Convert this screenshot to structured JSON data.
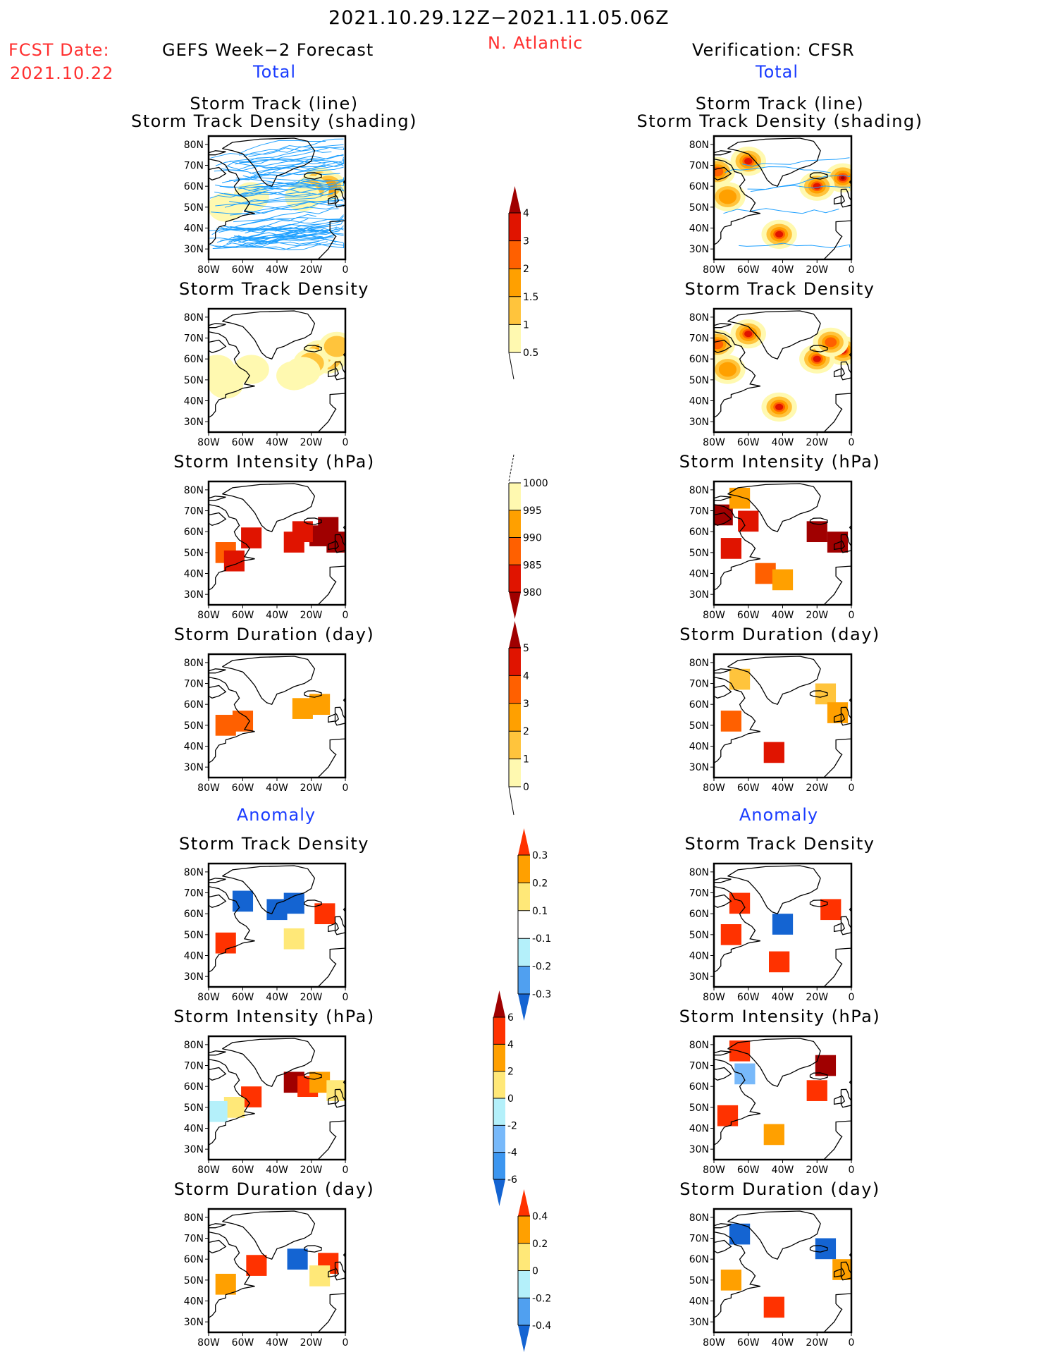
{
  "header": {
    "period": "2021.10.29.12Z−2021.11.05.06Z",
    "region": "N. Atlantic",
    "fcst_label": "FCST Date:",
    "fcst_date": "2021.10.22",
    "left_title": "GEFS Week−2 Forecast",
    "right_title": "Verification: CFSR",
    "total_label_left": "Total",
    "total_label_right": "Total",
    "anomaly_label_left": "Anomaly",
    "anomaly_label_right": "Anomaly"
  },
  "panel_titles": {
    "track_line": "Storm Track (line)",
    "track_shading": "Storm Track Density (shading)",
    "density": "Storm Track Density",
    "intensity": "Storm Intensity (hPa)",
    "duration": "Storm Duration (day)"
  },
  "axes": {
    "lat_ticks": [
      "80N",
      "70N",
      "60N",
      "50N",
      "40N",
      "30N"
    ],
    "lon_ticks": [
      "80W",
      "60W",
      "40W",
      "20W",
      "0"
    ],
    "lat_range": [
      25,
      84
    ],
    "lon_range": [
      -80,
      0
    ]
  },
  "colors": {
    "total_density": [
      "#fff9b0",
      "#ffc43c",
      "#ffa000",
      "#ff6000",
      "#e01400",
      "#a00000"
    ],
    "total_intensity": [
      "#fff9b0",
      "#ffa000",
      "#ff6000",
      "#e01400",
      "#a00000"
    ],
    "total_duration": [
      "#fff9b0",
      "#ffc43c",
      "#ffa000",
      "#ff6000",
      "#e01400",
      "#a00000"
    ],
    "anom": [
      "#1464d2",
      "#50a0f0",
      "#b4f0fa",
      "#ffffff",
      "#ffe878",
      "#ffa000",
      "#ff3200"
    ],
    "anom_int": [
      "#1464d2",
      "#3c96f0",
      "#78b9fa",
      "#b4f0fa",
      "#ffe878",
      "#ffa000",
      "#ff3200",
      "#a00000"
    ],
    "track_line": "#1ea0ff",
    "title_red": "#ff3030",
    "title_blue": "#1a3cff"
  },
  "chart_data": [
    {
      "type": "heatmap",
      "title": "Storm Track (line) / Storm Track Density (shading)",
      "subtitle": "GEFS Week-2 Forecast Total",
      "xlabel": "",
      "ylabel": "",
      "xlim": [
        -80,
        0
      ],
      "ylim": [
        25,
        84
      ],
      "cells": [
        [
          -15,
          62,
          1.5
        ],
        [
          -10,
          60,
          1.5
        ],
        [
          -20,
          58,
          1
        ],
        [
          -25,
          55,
          0.5
        ],
        [
          -70,
          50,
          0.5
        ],
        [
          -55,
          55,
          0.5
        ]
      ],
      "tracks": true
    },
    {
      "type": "heatmap",
      "title": "Storm Track (line) / Storm Track Density (shading)",
      "subtitle": "Verification: CFSR Total",
      "xlim": [
        -80,
        0
      ],
      "ylim": [
        25,
        84
      ],
      "cells": [
        [
          -60,
          72,
          3
        ],
        [
          -5,
          64,
          4
        ],
        [
          -20,
          60,
          3
        ],
        [
          -42,
          37,
          3
        ],
        [
          -72,
          55,
          1.5
        ],
        [
          -78,
          67,
          2
        ]
      ],
      "tracks": true
    },
    {
      "type": "heatmap",
      "title": "Storm Track Density",
      "subtitle": "GEFS Week-2 Forecast Total",
      "xlim": [
        -80,
        0
      ],
      "ylim": [
        25,
        84
      ],
      "colorbar": {
        "levels": [
          "0.5",
          "1",
          "1.5",
          "2",
          "3",
          "4"
        ]
      },
      "cells": [
        [
          -10,
          60,
          1.5
        ],
        [
          -15,
          62,
          1.5
        ],
        [
          -20,
          58,
          1
        ],
        [
          -5,
          66,
          1
        ],
        [
          -25,
          54,
          0.5
        ],
        [
          -30,
          52,
          0.5
        ],
        [
          -70,
          48,
          0.5
        ],
        [
          -55,
          55,
          0.5
        ],
        [
          -75,
          55,
          0.5
        ]
      ]
    },
    {
      "type": "heatmap",
      "title": "Storm Track Density",
      "subtitle": "Verification: CFSR Total",
      "xlim": [
        -80,
        0
      ],
      "ylim": [
        25,
        84
      ],
      "cells": [
        [
          -60,
          72,
          3
        ],
        [
          -5,
          64,
          4
        ],
        [
          -20,
          60,
          3
        ],
        [
          -42,
          37,
          3
        ],
        [
          -72,
          55,
          1.5
        ],
        [
          -78,
          67,
          2
        ],
        [
          -12,
          68,
          2
        ]
      ]
    },
    {
      "type": "heatmap",
      "title": "Storm Intensity (hPa)",
      "subtitle": "GEFS Week-2 Forecast Total",
      "xlim": [
        -80,
        0
      ],
      "ylim": [
        25,
        84
      ],
      "colorbar": {
        "levels": [
          "1000",
          "995",
          "990",
          "985",
          "980"
        ]
      },
      "cells": [
        [
          -10,
          62,
          982
        ],
        [
          -15,
          58,
          982
        ],
        [
          -5,
          55,
          982
        ],
        [
          -25,
          60,
          987
        ],
        [
          -30,
          55,
          987
        ],
        [
          -55,
          57,
          987
        ],
        [
          -70,
          50,
          992
        ],
        [
          -65,
          46,
          987
        ]
      ]
    },
    {
      "type": "heatmap",
      "title": "Storm Intensity (hPa)",
      "subtitle": "Verification: CFSR Total",
      "xlim": [
        -80,
        0
      ],
      "ylim": [
        25,
        84
      ],
      "cells": [
        [
          -75,
          68,
          982
        ],
        [
          -60,
          65,
          987
        ],
        [
          -20,
          60,
          978
        ],
        [
          -8,
          55,
          982
        ],
        [
          -50,
          40,
          992
        ],
        [
          -40,
          37,
          997
        ],
        [
          -70,
          52,
          987
        ],
        [
          -65,
          76,
          997
        ]
      ]
    },
    {
      "type": "heatmap",
      "title": "Storm Duration (day)",
      "subtitle": "GEFS Week-2 Forecast Total",
      "xlim": [
        -80,
        0
      ],
      "ylim": [
        25,
        84
      ],
      "colorbar": {
        "levels": [
          "0",
          "1",
          "2",
          "3",
          "4",
          "5"
        ]
      },
      "cells": [
        [
          -15,
          60,
          2.5
        ],
        [
          -25,
          58,
          2.5
        ],
        [
          -70,
          50,
          3.5
        ],
        [
          -60,
          52,
          3.5
        ]
      ]
    },
    {
      "type": "heatmap",
      "title": "Storm Duration (day)",
      "subtitle": "Verification: CFSR Total",
      "xlim": [
        -80,
        0
      ],
      "ylim": [
        25,
        84
      ],
      "cells": [
        [
          -65,
          72,
          1.5
        ],
        [
          -15,
          65,
          1.5
        ],
        [
          -70,
          52,
          3.5
        ],
        [
          -45,
          37,
          4.5
        ],
        [
          -8,
          56,
          2.5
        ]
      ]
    },
    {
      "type": "heatmap",
      "title": "Storm Track Density",
      "subtitle": "GEFS Week-2 Forecast Anomaly",
      "xlim": [
        -80,
        0
      ],
      "ylim": [
        25,
        84
      ],
      "colorbar": {
        "levels": [
          "-0.3",
          "-0.2",
          "-0.1",
          "0.1",
          "0.2",
          "0.3"
        ]
      },
      "cells": [
        [
          -60,
          66,
          -0.35
        ],
        [
          -40,
          62,
          -0.35
        ],
        [
          -30,
          65,
          -0.35
        ],
        [
          -12,
          60,
          0.35
        ],
        [
          -70,
          46,
          0.35
        ],
        [
          -30,
          48,
          0.15
        ]
      ]
    },
    {
      "type": "heatmap",
      "title": "Storm Track Density",
      "subtitle": "Verification: CFSR Anomaly",
      "xlim": [
        -80,
        0
      ],
      "ylim": [
        25,
        84
      ],
      "cells": [
        [
          -40,
          55,
          -0.35
        ],
        [
          -65,
          65,
          0.35
        ],
        [
          -12,
          62,
          0.35
        ],
        [
          -42,
          37,
          0.35
        ],
        [
          -70,
          50,
          0.35
        ]
      ]
    },
    {
      "type": "heatmap",
      "title": "Storm Intensity (hPa)",
      "subtitle": "GEFS Week-2 Forecast Anomaly",
      "xlim": [
        -80,
        0
      ],
      "ylim": [
        25,
        84
      ],
      "colorbar": {
        "levels": [
          "-6",
          "-4",
          "-2",
          "0",
          "2",
          "4",
          "6"
        ]
      },
      "cells": [
        [
          -30,
          62,
          7
        ],
        [
          -22,
          60,
          5
        ],
        [
          -15,
          62,
          3
        ],
        [
          -55,
          55,
          5
        ],
        [
          -65,
          50,
          1
        ],
        [
          -75,
          48,
          -1
        ],
        [
          -5,
          58,
          1
        ]
      ]
    },
    {
      "type": "heatmap",
      "title": "Storm Intensity (hPa)",
      "subtitle": "Verification: CFSR Anomaly",
      "xlim": [
        -80,
        0
      ],
      "ylim": [
        25,
        84
      ],
      "cells": [
        [
          -15,
          70,
          7
        ],
        [
          -62,
          66,
          -3
        ],
        [
          -72,
          46,
          5
        ],
        [
          -45,
          37,
          3
        ],
        [
          -65,
          77,
          5
        ],
        [
          -20,
          58,
          5
        ]
      ]
    },
    {
      "type": "heatmap",
      "title": "Storm Duration (day)",
      "subtitle": "GEFS Week-2 Forecast Anomaly",
      "xlim": [
        -80,
        0
      ],
      "ylim": [
        25,
        84
      ],
      "colorbar": {
        "levels": [
          "-0.4",
          "-0.2",
          "0",
          "0.2",
          "0.4"
        ]
      },
      "cells": [
        [
          -28,
          60,
          -0.5
        ],
        [
          -10,
          58,
          0.5
        ],
        [
          -70,
          48,
          0.3
        ],
        [
          -52,
          57,
          0.5
        ],
        [
          -15,
          52,
          0.1
        ]
      ]
    },
    {
      "type": "heatmap",
      "title": "Storm Duration (day)",
      "subtitle": "Verification: CFSR Anomaly",
      "xlim": [
        -80,
        0
      ],
      "ylim": [
        25,
        84
      ],
      "cells": [
        [
          -65,
          72,
          -0.5
        ],
        [
          -15,
          65,
          -0.5
        ],
        [
          -70,
          50,
          0.3
        ],
        [
          -45,
          37,
          0.5
        ],
        [
          -5,
          55,
          0.3
        ]
      ]
    }
  ]
}
